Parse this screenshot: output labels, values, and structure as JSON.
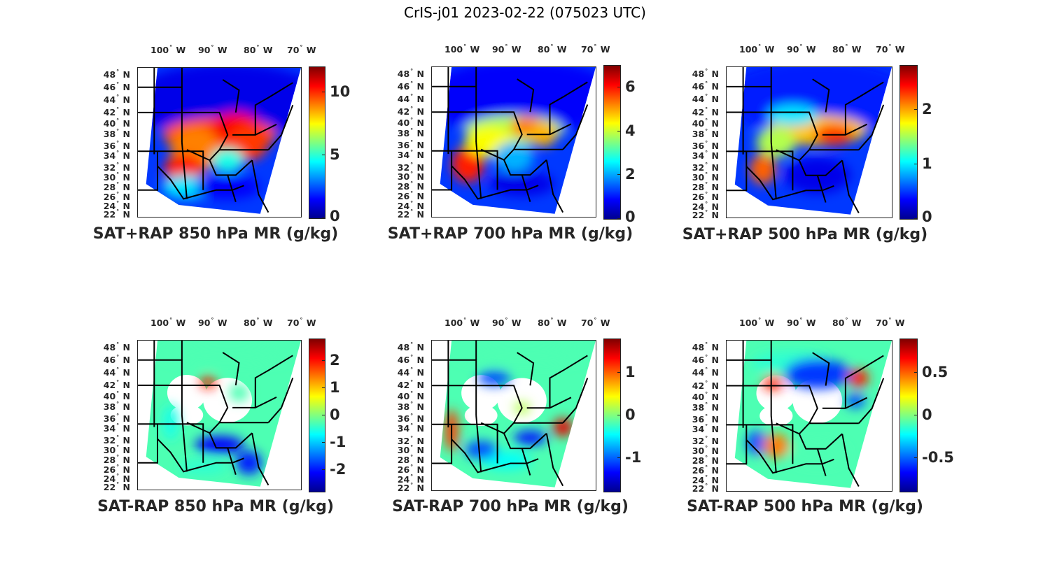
{
  "figure": {
    "title": "CrIS-j01 2023-02-22 (075023 UTC)"
  },
  "axes": {
    "lon_ticks": [
      "100",
      "90",
      "80",
      "70"
    ],
    "lon_hemisphere": "W",
    "lat_ticks": [
      "48",
      "46",
      "44",
      "42",
      "40",
      "38",
      "36",
      "34",
      "32",
      "30",
      "28",
      "26",
      "24",
      "22"
    ],
    "lat_hemisphere": "N",
    "degree_symbol": "°"
  },
  "colormap": "jet",
  "chart_data": [
    {
      "type": "heatmap",
      "title": "SAT+RAP 850 hPa MR (g/kg)",
      "variable": "water vapor mixing ratio",
      "units": "g/kg",
      "pressure_level_hPa": 850,
      "colorbar": {
        "range": [
          0,
          12
        ],
        "ticks": [
          "0",
          "5",
          "10"
        ],
        "tick_values": [
          0,
          5,
          10
        ]
      },
      "xlim": [
        "~104 W",
        "~67 W"
      ],
      "ylim": [
        "22 N",
        "50 N"
      ],
      "field": "swath",
      "notes": "High values (~9-12) over TX/OK, AR/TN/KY and GA/SC; low values (~0-3) north of 42N and over Gulf"
    },
    {
      "type": "heatmap",
      "title": "SAT+RAP 700 hPa MR (g/kg)",
      "variable": "water vapor mixing ratio",
      "units": "g/kg",
      "pressure_level_hPa": 700,
      "colorbar": {
        "range": [
          0,
          7
        ],
        "ticks": [
          "0",
          "2",
          "4",
          "6"
        ],
        "tick_values": [
          0,
          2,
          4,
          6
        ]
      },
      "xlim": [
        "~104 W",
        "~67 W"
      ],
      "ylim": [
        "22 N",
        "50 N"
      ],
      "field": "swath",
      "notes": "Maximum (~6-7) over west Texas, band of ~4-5 across KS/MO/IL/IN/OH"
    },
    {
      "type": "heatmap",
      "title": "SAT+RAP 500 hPa MR (g/kg)",
      "variable": "water vapor mixing ratio",
      "units": "g/kg",
      "pressure_level_hPa": 500,
      "colorbar": {
        "range": [
          0,
          2.8
        ],
        "ticks": [
          "0",
          "1",
          "2"
        ],
        "tick_values": [
          0,
          1,
          2
        ]
      },
      "xlim": [
        "~104 W",
        "~67 W"
      ],
      "ylim": [
        "22 N",
        "50 N"
      ],
      "field": "swath",
      "notes": "Peak (~2.2-2.5) over KY/TN and west Texas; low (<0.5) over Gulf states and north"
    },
    {
      "type": "heatmap",
      "title": "SAT-RAP 850 hPa MR (g/kg)",
      "variable": "mixing ratio difference",
      "units": "g/kg",
      "pressure_level_hPa": 850,
      "colorbar": {
        "range": [
          -2.8,
          2.8
        ],
        "ticks": [
          "2",
          "1",
          "0",
          "-1",
          "-2"
        ],
        "tick_values": [
          2,
          1,
          0,
          -1,
          -2
        ]
      },
      "xlim": [
        "~104 W",
        "~67 W"
      ],
      "ylim": [
        "22 N",
        "50 N"
      ],
      "field": "sparse swath",
      "notes": "Mostly near 0; strong negatives (~-2) over LA/MS/AL and Gulf; positive (~2) spot over IA/WI"
    },
    {
      "type": "heatmap",
      "title": "SAT-RAP 700 hPa MR (g/kg)",
      "variable": "mixing ratio difference",
      "units": "g/kg",
      "pressure_level_hPa": 700,
      "colorbar": {
        "range": [
          -1.8,
          1.8
        ],
        "ticks": [
          "1",
          "0",
          "-1"
        ],
        "tick_values": [
          1,
          0,
          -1
        ]
      },
      "xlim": [
        "~104 W",
        "~67 W"
      ],
      "ylim": [
        "22 N",
        "50 N"
      ],
      "field": "sparse swath",
      "notes": "Positive (~1-1.5) along western edge (TX panhandle/KS) and VA/NC; negative (~-1.5) over Great Lakes and Gulf coast"
    },
    {
      "type": "heatmap",
      "title": "SAT-RAP 500 hPa MR (g/kg)",
      "variable": "mixing ratio difference",
      "units": "g/kg",
      "pressure_level_hPa": 500,
      "colorbar": {
        "range": [
          -0.9,
          0.9
        ],
        "ticks": [
          "0.5",
          "0",
          "-0.5"
        ],
        "tick_values": [
          0.5,
          0,
          -0.5
        ]
      },
      "xlim": [
        "~104 W",
        "~67 W"
      ],
      "ylim": [
        "22 N",
        "50 N"
      ],
      "field": "sparse swath",
      "notes": "Negative (~-0.8) over Great Lakes/WI/MI and west TX; positive (~0.7) over IA, PA/NY, central TX"
    }
  ]
}
